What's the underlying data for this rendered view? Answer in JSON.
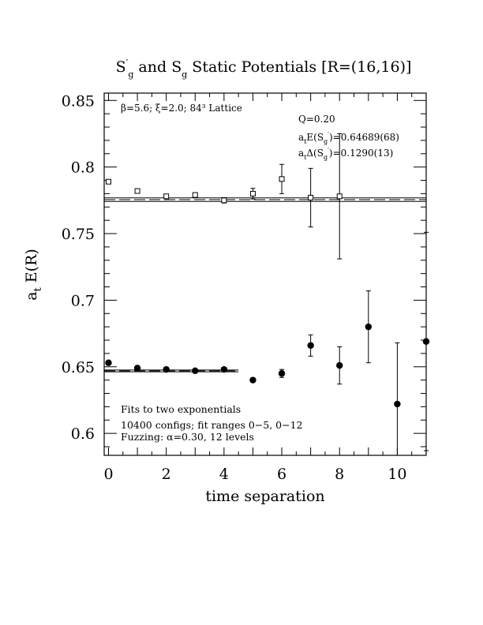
{
  "chart_data": {
    "type": "scatter",
    "title_main": "S",
    "title_main_sup": "′",
    "title_main_sub": "g",
    "title_mid": " and S",
    "title_mid_sub": "g",
    "title_end": " Static Potentials [R=(16,16)]",
    "xlabel": "time separation",
    "ylabel_a": "a",
    "ylabel_sub": "t",
    "ylabel_b": " E(R)",
    "xlim": [
      -0.15,
      11.0
    ],
    "ylim": [
      0.5835,
      0.8555
    ],
    "xticks": [
      "0",
      "2",
      "4",
      "6",
      "8",
      "10"
    ],
    "xtick_values": [
      0,
      2,
      4,
      6,
      8,
      10
    ],
    "yticks": [
      "0.6",
      "0.65",
      "0.7",
      "0.75",
      "0.8",
      "0.85"
    ],
    "ytick_values": [
      0.6,
      0.65,
      0.7,
      0.75,
      0.8,
      0.85
    ],
    "annotations": {
      "lattice": "β=5.6; ξ=2.0; 84³ Lattice",
      "q": "Q=0.20",
      "energy_pre": "a",
      "energy_sub1": "t",
      "energy_mid": "E(S",
      "energy_sub2": "g",
      "energy_sup2": "′",
      "energy_post": ")=0.64689(68)",
      "delta_pre": "a",
      "delta_sub1": "t",
      "delta_mid": "Δ(S",
      "delta_sub2": "g",
      "delta_sup2": "′",
      "delta_post": ")=0.1290(13)",
      "fits": "Fits to two exponentials",
      "configs": "10400 configs; fit ranges 0−5, 0−12",
      "fuzzing": "Fuzzing: α=0.30, 12 levels"
    },
    "series": [
      {
        "marker": "open-square",
        "points": [
          {
            "x": 0,
            "y": 0.789,
            "err": 0.0015
          },
          {
            "x": 1,
            "y": 0.782,
            "err": 0.0012
          },
          {
            "x": 2,
            "y": 0.778,
            "err": 0.0012
          },
          {
            "x": 3,
            "y": 0.779,
            "err": 0.0013
          },
          {
            "x": 4,
            "y": 0.775,
            "err": 0.002
          },
          {
            "x": 5,
            "y": 0.78,
            "err": 0.004
          },
          {
            "x": 6,
            "y": 0.791,
            "err": 0.011
          },
          {
            "x": 7,
            "y": 0.777,
            "err": 0.022
          },
          {
            "x": 8,
            "y": 0.778,
            "err": 0.047
          }
        ],
        "fit": {
          "value": 0.7755,
          "err": 0.0013,
          "x_from": -0.15,
          "x_to": 11.0
        }
      },
      {
        "marker": "filled-circle",
        "points": [
          {
            "x": 0,
            "y": 0.653,
            "err": 0.0012
          },
          {
            "x": 1,
            "y": 0.649,
            "err": 0.001
          },
          {
            "x": 2,
            "y": 0.648,
            "err": 0.001
          },
          {
            "x": 3,
            "y": 0.647,
            "err": 0.001
          },
          {
            "x": 4,
            "y": 0.648,
            "err": 0.001
          },
          {
            "x": 5,
            "y": 0.64,
            "err": 0.0015
          },
          {
            "x": 6,
            "y": 0.645,
            "err": 0.003
          },
          {
            "x": 7,
            "y": 0.666,
            "err": 0.008
          },
          {
            "x": 8,
            "y": 0.651,
            "err": 0.014
          },
          {
            "x": 9,
            "y": 0.68,
            "err": 0.027
          },
          {
            "x": 10,
            "y": 0.622,
            "err": 0.046
          },
          {
            "x": 11,
            "y": 0.669,
            "err": 0.082
          }
        ],
        "fit": {
          "value": 0.64689,
          "err": 0.00068,
          "x_from": -0.15,
          "x_to": 4.5
        }
      }
    ]
  }
}
